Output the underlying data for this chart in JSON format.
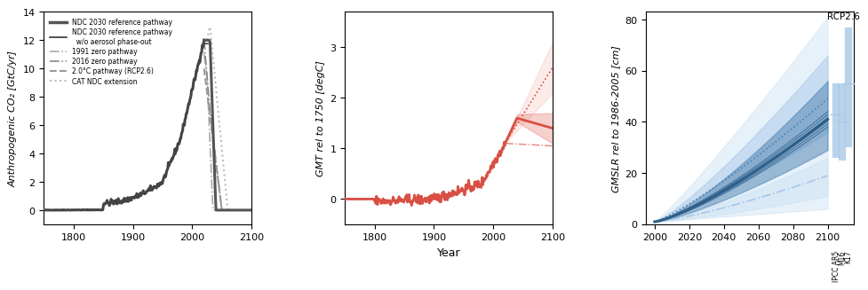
{
  "panel1": {
    "ylabel": "Anthropogenic CO₂ [GtC/yr]",
    "xlim": [
      1750,
      2100
    ],
    "ylim": [
      -1,
      14
    ],
    "yticks": [
      0,
      2,
      4,
      6,
      8,
      10,
      12,
      14
    ],
    "xticks": [
      1800,
      1900,
      2000,
      2100
    ],
    "legend": [
      {
        "label": "NDC 2030 reference pathway",
        "style": "solid",
        "color": "#555555",
        "lw": 2.5
      },
      {
        "label": "NDC 2030 reference pathway\n  w/o aerosol phase-out",
        "style": "solid",
        "color": "#333333",
        "lw": 1.2
      },
      {
        "label": "1991 zero pathway",
        "style": "dashdot",
        "color": "#aaaaaa",
        "lw": 1.2
      },
      {
        "label": "2016 zero pathway",
        "style": "dashdot",
        "color": "#888888",
        "lw": 1.2
      },
      {
        "label": "2.0°C pathway (RCP2.6)",
        "style": "dashed",
        "color": "#999999",
        "lw": 1.5
      },
      {
        "label": "CAT NDC extension",
        "style": "dotted",
        "color": "#bbbbbb",
        "lw": 1.5
      }
    ]
  },
  "panel2": {
    "ylabel": "GMT rel to 1750 [degC]",
    "xlabel": "Year",
    "xlim": [
      1750,
      2100
    ],
    "ylim": [
      -0.5,
      3.7
    ],
    "yticks": [
      0,
      1,
      2,
      3
    ],
    "xticks": [
      1800,
      1900,
      2000,
      2100
    ],
    "line_color": "#d94f43",
    "shade_color": "#e8796f",
    "shade_alpha": 0.35
  },
  "panel3": {
    "ylabel": "GMSLR rel to 1986-2005 [cm]",
    "xlim": [
      1995,
      2115
    ],
    "ylim": [
      0,
      83
    ],
    "yticks": [
      0,
      20,
      40,
      60,
      80
    ],
    "xticks": [
      2000,
      2020,
      2040,
      2060,
      2080,
      2100
    ],
    "dark_blue": "#2e5f8a",
    "mid_blue": "#4a80b0",
    "light_blue": "#a8c8e8",
    "very_light_blue": "#d0e4f4",
    "title_rcp": "RCP2.6",
    "bar_labels": [
      "IPCC AR5",
      "M16",
      "K17"
    ]
  }
}
